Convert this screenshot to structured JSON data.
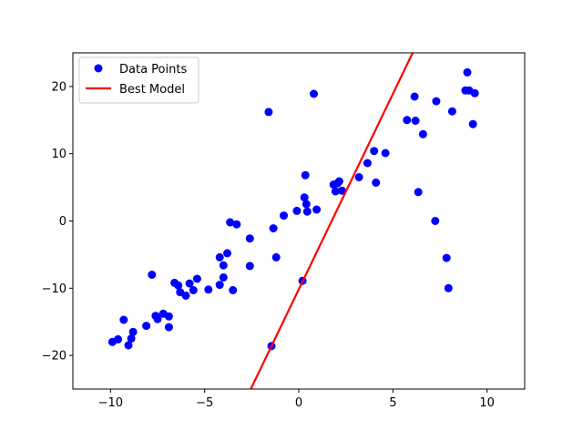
{
  "chart_data": {
    "type": "scatter",
    "title": "",
    "xlabel": "",
    "ylabel": "",
    "xlim": [
      -12,
      12
    ],
    "ylim": [
      -25,
      25
    ],
    "x_ticks": [
      -10,
      -5,
      0,
      5,
      10
    ],
    "y_ticks": [
      -20,
      -10,
      0,
      10,
      20
    ],
    "x_tick_labels": [
      "−10",
      "−5",
      "0",
      "5",
      "10"
    ],
    "y_tick_labels": [
      "−20",
      "−10",
      "0",
      "10",
      "20"
    ],
    "grid": false,
    "legend": {
      "placement": "upper-left",
      "entries": [
        "Data Points",
        "Best Model"
      ]
    },
    "series": [
      {
        "name": "Data Points",
        "kind": "scatter",
        "color": "#0000ff",
        "points": [
          [
            -9.9,
            -18.0
          ],
          [
            -9.6,
            -17.6
          ],
          [
            -9.3,
            -14.7
          ],
          [
            -9.05,
            -18.5
          ],
          [
            -8.9,
            -17.5
          ],
          [
            -8.8,
            -16.5
          ],
          [
            -8.1,
            -15.6
          ],
          [
            -7.8,
            -8.0
          ],
          [
            -7.6,
            -14.1
          ],
          [
            -7.5,
            -14.6
          ],
          [
            -7.2,
            -13.8
          ],
          [
            -6.9,
            -14.2
          ],
          [
            -6.9,
            -15.8
          ],
          [
            -6.6,
            -9.2
          ],
          [
            -6.4,
            -9.6
          ],
          [
            -6.3,
            -10.6
          ],
          [
            -6.0,
            -11.1
          ],
          [
            -5.8,
            -9.3
          ],
          [
            -5.6,
            -10.3
          ],
          [
            -5.4,
            -8.6
          ],
          [
            -4.8,
            -10.2
          ],
          [
            -4.2,
            -9.5
          ],
          [
            -4.2,
            -5.4
          ],
          [
            -4.0,
            -8.4
          ],
          [
            -4.0,
            -6.6
          ],
          [
            -3.8,
            -4.8
          ],
          [
            -3.65,
            -0.2
          ],
          [
            -3.5,
            -10.3
          ],
          [
            -3.3,
            -0.5
          ],
          [
            -2.6,
            -6.7
          ],
          [
            -2.6,
            -2.6
          ],
          [
            -1.6,
            16.2
          ],
          [
            -1.45,
            -18.6
          ],
          [
            -1.35,
            -1.1
          ],
          [
            -1.2,
            -5.4
          ],
          [
            -0.8,
            0.8
          ],
          [
            -0.1,
            1.5
          ],
          [
            0.2,
            -8.9
          ],
          [
            0.3,
            3.5
          ],
          [
            0.35,
            6.8
          ],
          [
            0.4,
            2.5
          ],
          [
            0.45,
            1.4
          ],
          [
            0.8,
            18.9
          ],
          [
            0.95,
            1.7
          ],
          [
            1.85,
            5.4
          ],
          [
            1.95,
            4.4
          ],
          [
            2.05,
            5.6
          ],
          [
            2.15,
            5.9
          ],
          [
            2.3,
            4.5
          ],
          [
            3.2,
            6.5
          ],
          [
            3.65,
            8.6
          ],
          [
            4.0,
            10.4
          ],
          [
            4.1,
            5.7
          ],
          [
            4.6,
            10.1
          ],
          [
            5.75,
            15.0
          ],
          [
            6.15,
            18.5
          ],
          [
            6.2,
            14.9
          ],
          [
            6.35,
            4.3
          ],
          [
            6.6,
            12.9
          ],
          [
            7.25,
            0.0
          ],
          [
            7.3,
            17.8
          ],
          [
            7.85,
            -5.5
          ],
          [
            7.95,
            -10.0
          ],
          [
            8.15,
            16.3
          ],
          [
            8.85,
            19.4
          ],
          [
            8.95,
            22.1
          ],
          [
            9.05,
            19.4
          ],
          [
            9.25,
            14.4
          ],
          [
            9.35,
            19.0
          ]
        ]
      },
      {
        "name": "Best Model",
        "kind": "line",
        "color": "#ff0000",
        "points": [
          [
            -2.55,
            -25.0
          ],
          [
            6.05,
            25.0
          ]
        ]
      }
    ]
  }
}
